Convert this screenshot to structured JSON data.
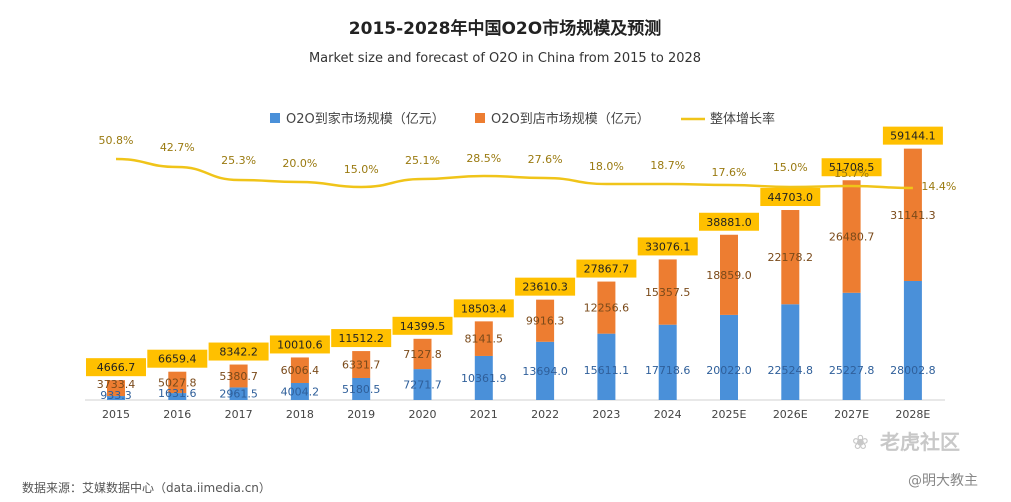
{
  "header": {
    "title": "2015-2028年中国O2O市场规模及预测",
    "subtitle": "Market size and forecast of O2O in China from 2015 to 2028"
  },
  "legend": {
    "home": "O2O到家市场规模（亿元）",
    "store": "O2O到店市场规模（亿元）",
    "growth": "整体增长率"
  },
  "source": "数据来源：艾媒数据中心（data.iimedia.cn）",
  "watermark": {
    "main": "老虎社区",
    "sub": "@明大教主"
  },
  "colors": {
    "home": "#4a90d9",
    "store": "#ed7d31",
    "growth": "#f0c419",
    "total_box": "#ffc000"
  },
  "chart_data": {
    "type": "bar",
    "stacked": true,
    "categories": [
      "2015",
      "2016",
      "2017",
      "2018",
      "2019",
      "2020",
      "2021",
      "2022",
      "2023",
      "2024",
      "2025E",
      "2026E",
      "2027E",
      "2028E"
    ],
    "series": [
      {
        "name": "O2O到家市场规模（亿元）",
        "values": [
          933.3,
          1631.6,
          2961.5,
          4004.2,
          5180.5,
          7271.7,
          10361.9,
          13694.0,
          15611.1,
          17718.6,
          20022.0,
          22524.8,
          25227.8,
          28002.8
        ]
      },
      {
        "name": "O2O到店市场规模（亿元）",
        "values": [
          3733.4,
          5027.8,
          5380.7,
          6006.4,
          6331.7,
          7127.8,
          8141.5,
          9916.3,
          12256.6,
          15357.5,
          18859.0,
          22178.2,
          26480.7,
          31141.3
        ]
      }
    ],
    "totals": [
      4666.7,
      6659.4,
      8342.2,
      10010.6,
      11512.2,
      14399.5,
      18503.4,
      23610.3,
      27867.7,
      33076.1,
      38881.0,
      44703.0,
      51708.5,
      59144.1
    ],
    "line": {
      "name": "整体增长率",
      "values": [
        "50.8%",
        "42.7%",
        "25.3%",
        "20.0%",
        "15.0%",
        "25.1%",
        "28.5%",
        "27.6%",
        "18.0%",
        "18.7%",
        "17.6%",
        "15.0%",
        "15.7%",
        "14.4%"
      ]
    },
    "legend_position": "top"
  }
}
